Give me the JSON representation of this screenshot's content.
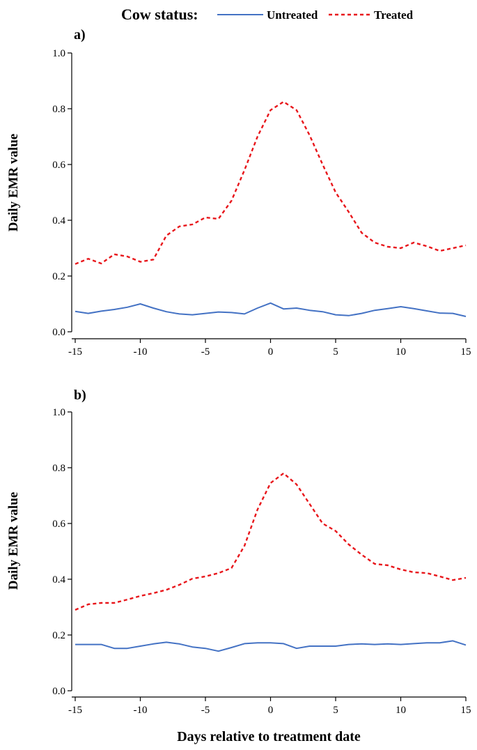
{
  "legend": {
    "title": "Cow status:",
    "items": [
      "Untreated",
      "Treated"
    ]
  },
  "colors": {
    "untreated": "#4472c4",
    "treated": "#e8161b"
  },
  "xlabel": "Days relative to treatment date",
  "chart_data": [
    {
      "type": "line",
      "panel_label": "a)",
      "ylabel": "Daily EMR value",
      "xlabel": "Days relative to treatment date",
      "xlim": [
        -15,
        15
      ],
      "ylim": [
        0,
        1
      ],
      "x_ticks": [
        "-15",
        "-10",
        "-5",
        "0",
        "5",
        "10",
        "15"
      ],
      "y_ticks": [
        "0.0",
        "0.2",
        "0.4",
        "0.6",
        "0.8",
        "1.0"
      ],
      "grid": false,
      "legend_position": "top",
      "x": [
        -15,
        -14,
        -13,
        -12,
        -11,
        -10,
        -9,
        -8,
        -7,
        -6,
        -5,
        -4,
        -3,
        -2,
        -1,
        0,
        1,
        2,
        3,
        4,
        5,
        6,
        7,
        8,
        9,
        10,
        11,
        12,
        13,
        14,
        15
      ],
      "series": [
        {
          "name": "Untreated",
          "style": "solid",
          "values": [
            0.073,
            0.066,
            0.074,
            0.08,
            0.088,
            0.1,
            0.085,
            0.072,
            0.064,
            0.061,
            0.066,
            0.071,
            0.069,
            0.064,
            0.085,
            0.103,
            0.082,
            0.085,
            0.077,
            0.072,
            0.061,
            0.058,
            0.066,
            0.077,
            0.083,
            0.09,
            0.083,
            0.075,
            0.067,
            0.066,
            0.055
          ]
        },
        {
          "name": "Treated",
          "style": "dashed",
          "values": [
            0.243,
            0.262,
            0.245,
            0.278,
            0.27,
            0.251,
            0.259,
            0.345,
            0.378,
            0.385,
            0.41,
            0.405,
            0.47,
            0.58,
            0.7,
            0.795,
            0.825,
            0.795,
            0.705,
            0.6,
            0.5,
            0.43,
            0.355,
            0.32,
            0.305,
            0.3,
            0.32,
            0.307,
            0.29,
            0.3,
            0.31
          ]
        }
      ]
    },
    {
      "type": "line",
      "panel_label": "b)",
      "ylabel": "Daily EMR value",
      "xlabel": "Days relative to treatment date",
      "xlim": [
        -15,
        15
      ],
      "ylim": [
        0,
        1
      ],
      "x_ticks": [
        "-15",
        "-10",
        "-5",
        "0",
        "5",
        "10",
        "15"
      ],
      "y_ticks": [
        "0.0",
        "0.2",
        "0.4",
        "0.6",
        "0.8",
        "1.0"
      ],
      "grid": false,
      "legend_position": "top",
      "x": [
        -15,
        -14,
        -13,
        -12,
        -11,
        -10,
        -9,
        -8,
        -7,
        -6,
        -5,
        -4,
        -3,
        -2,
        -1,
        0,
        1,
        2,
        3,
        4,
        5,
        6,
        7,
        8,
        9,
        10,
        11,
        12,
        13,
        14,
        15
      ],
      "series": [
        {
          "name": "Untreated",
          "style": "solid",
          "values": [
            0.166,
            0.166,
            0.166,
            0.152,
            0.152,
            0.16,
            0.168,
            0.174,
            0.168,
            0.157,
            0.152,
            0.142,
            0.155,
            0.169,
            0.172,
            0.172,
            0.169,
            0.152,
            0.16,
            0.16,
            0.16,
            0.166,
            0.168,
            0.166,
            0.168,
            0.166,
            0.169,
            0.172,
            0.172,
            0.179,
            0.164
          ]
        },
        {
          "name": "Treated",
          "style": "dashed",
          "values": [
            0.29,
            0.31,
            0.315,
            0.315,
            0.327,
            0.34,
            0.35,
            0.362,
            0.38,
            0.402,
            0.41,
            0.422,
            0.44,
            0.52,
            0.65,
            0.745,
            0.78,
            0.74,
            0.67,
            0.6,
            0.573,
            0.525,
            0.488,
            0.455,
            0.45,
            0.435,
            0.425,
            0.422,
            0.41,
            0.397,
            0.405
          ]
        }
      ]
    }
  ]
}
